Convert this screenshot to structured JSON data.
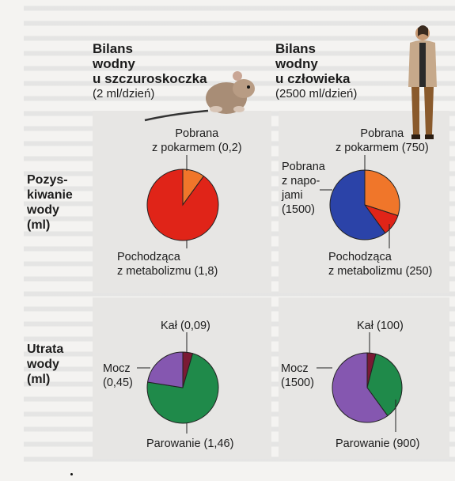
{
  "columns": [
    {
      "title": "Bilans\nwodny\nu szczuroskoczka",
      "subtitle": "(2 ml/dzień)"
    },
    {
      "title": "Bilans\nwodny\nu człowieka",
      "subtitle": "(2500 ml/dzień)"
    }
  ],
  "rows": [
    {
      "label": "Pozys-\nkiwanie\nwody\n(ml)"
    },
    {
      "label": "Utrata\nwody\n(ml)"
    }
  ],
  "colors": {
    "red": "#e02418",
    "orange": "#f0762a",
    "blue": "#2b43a8",
    "green": "#1f8a4a",
    "purple": "#8557b0",
    "darkred": "#7a1a34"
  },
  "chart_data": [
    {
      "type": "pie",
      "name_ref": "gerbil-intake",
      "slices": [
        {
          "label": "Pobrana\nz pokarmem (0,2)",
          "value": 0.2,
          "color": "#f0762a"
        },
        {
          "label": "Pochodząca\nz metabolizmu (1,8)",
          "value": 1.8,
          "color": "#e02418"
        }
      ]
    },
    {
      "type": "pie",
      "name_ref": "human-intake",
      "slices": [
        {
          "label": "Pobrana\nz pokarmem (750)",
          "value": 750,
          "color": "#f0762a"
        },
        {
          "label": "Pochodząca\nz metabolizmu (250)",
          "value": 250,
          "color": "#e02418"
        },
        {
          "label": "Pobrana\nz napo-\njami\n(1500)",
          "value": 1500,
          "color": "#2b43a8"
        }
      ]
    },
    {
      "type": "pie",
      "name_ref": "gerbil-loss",
      "slices": [
        {
          "label": "Kał (0,09)",
          "value": 0.09,
          "color": "#7a1a34"
        },
        {
          "label": "Parowanie (1,46)",
          "value": 1.46,
          "color": "#1f8a4a"
        },
        {
          "label": "Mocz\n(0,45)",
          "value": 0.45,
          "color": "#8557b0"
        }
      ]
    },
    {
      "type": "pie",
      "name_ref": "human-loss",
      "slices": [
        {
          "label": "Kał (100)",
          "value": 100,
          "color": "#7a1a34"
        },
        {
          "label": "Parowanie (900)",
          "value": 900,
          "color": "#1f8a4a"
        },
        {
          "label": "Mocz\n(1500)",
          "value": 1500,
          "color": "#8557b0"
        }
      ]
    }
  ]
}
